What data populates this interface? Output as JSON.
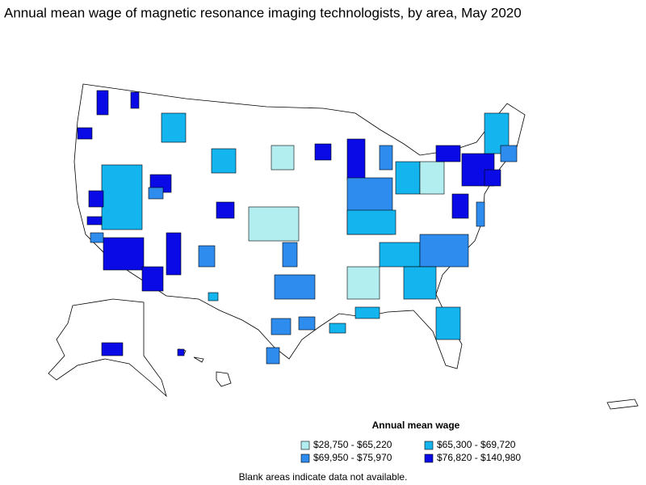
{
  "title": "Annual mean wage of magnetic resonance imaging technologists, by area, May 2020",
  "legend": {
    "title": "Annual mean wage",
    "items": [
      {
        "label": "$28,750 - $65,220",
        "color": "#b2eef0"
      },
      {
        "label": "$65,300 - $69,720",
        "color": "#14b4ee"
      },
      {
        "label": "$69,950 - $75,970",
        "color": "#2e8cee"
      },
      {
        "label": "$76,820 - $140,980",
        "color": "#0a0ae6"
      }
    ]
  },
  "note": "Blank areas indicate data not available."
}
